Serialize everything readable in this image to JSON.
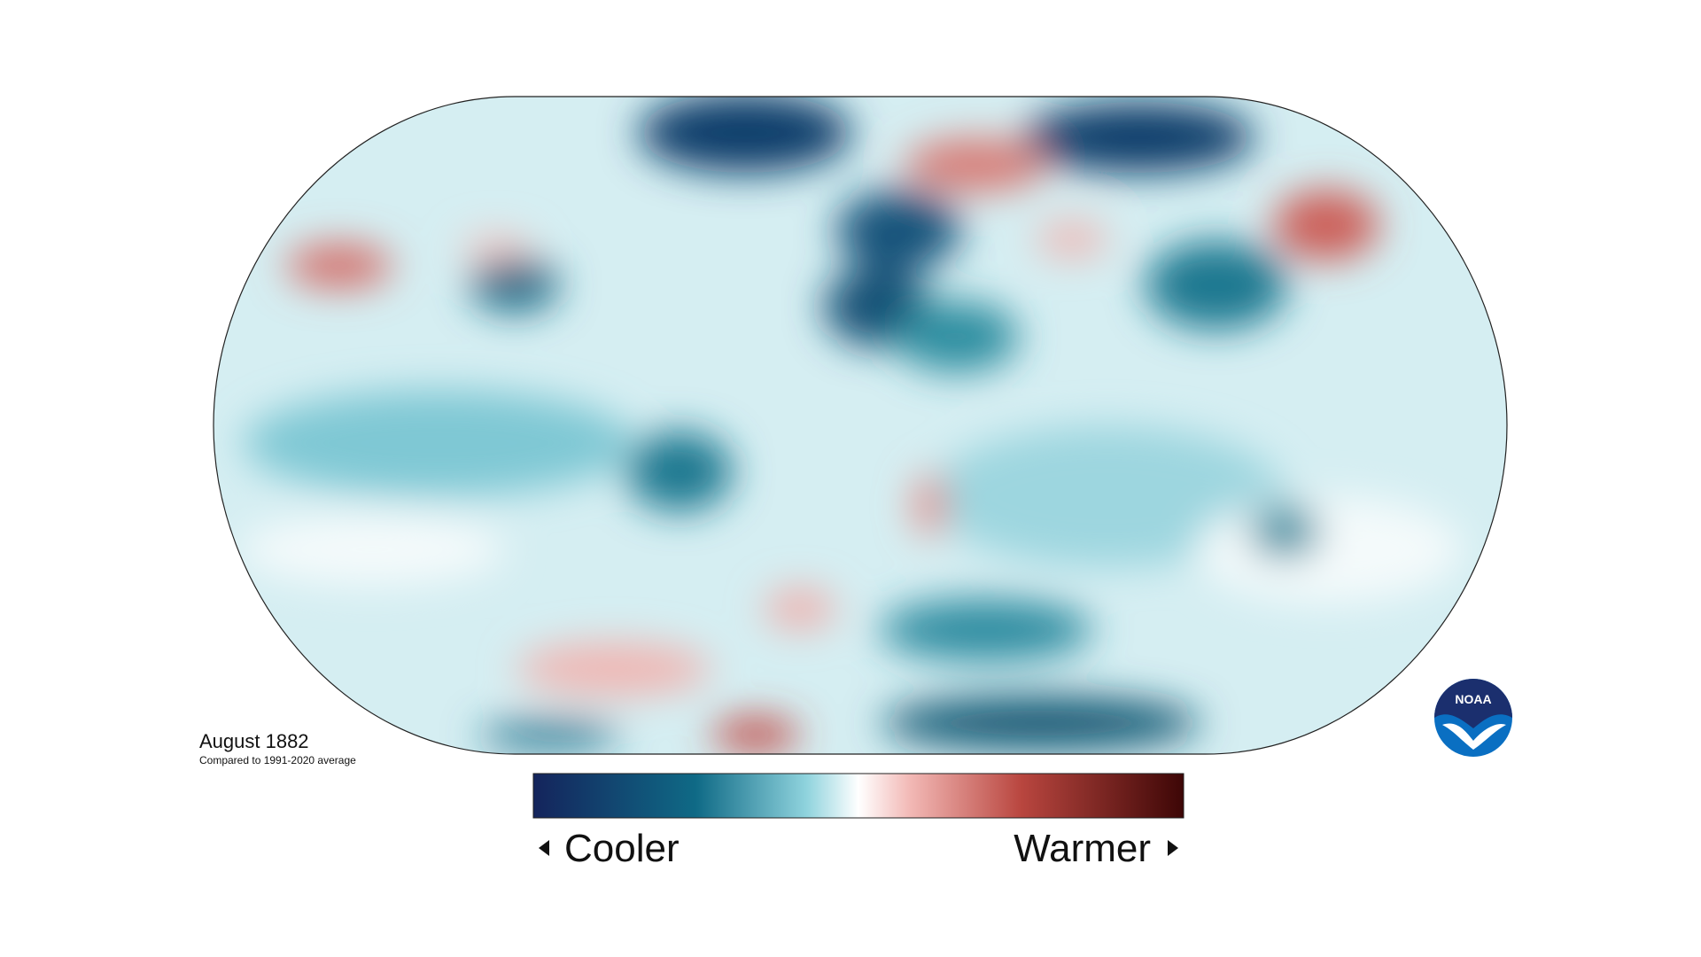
{
  "map": {
    "title": "August 1882",
    "subtitle": "Compared to 1991-2020 average"
  },
  "legend": {
    "low": "Cooler",
    "high": "Warmer"
  },
  "logo": {
    "text": "NOAA"
  }
}
